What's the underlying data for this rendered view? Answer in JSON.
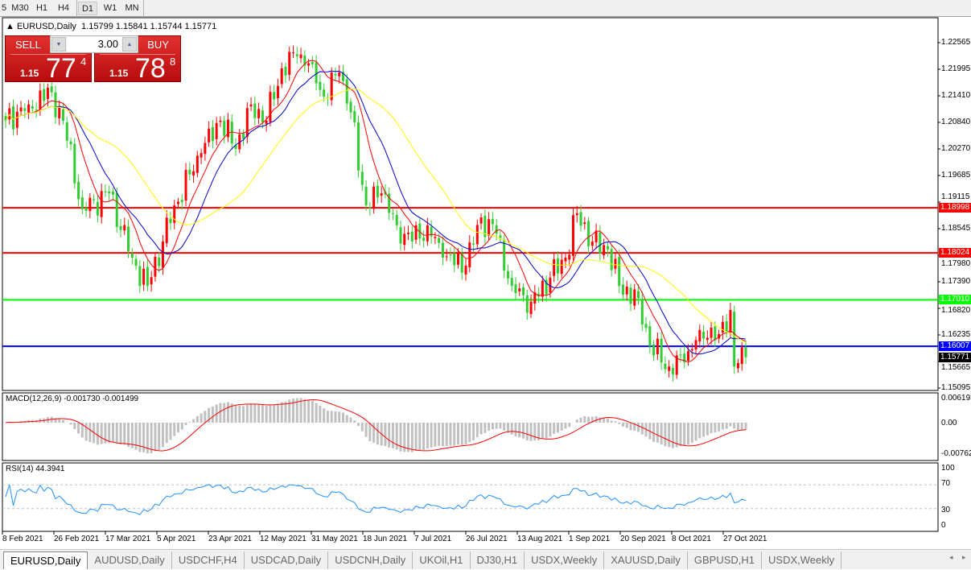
{
  "toolbar": {
    "timeframes": [
      {
        "label": "5"
      },
      {
        "label": "M30"
      },
      {
        "label": "H1"
      },
      {
        "label": "H4"
      },
      {
        "label": "D1",
        "active": true
      },
      {
        "label": "W1"
      },
      {
        "label": "MN"
      }
    ]
  },
  "chart": {
    "symbol": "EURUSD,Daily",
    "ohlc": "1.15799 1.15841 1.15744 1.15771",
    "trade": {
      "sell_label": "SELL",
      "buy_label": "BUY",
      "lot": "3.00",
      "sell_prefix": "1.15",
      "sell_big": "77",
      "sell_sup": "4",
      "buy_prefix": "1.15",
      "buy_big": "78",
      "buy_sup": "8"
    },
    "price_axis": [
      "1.22565",
      "1.21995",
      "1.21410",
      "1.20840",
      "1.20270",
      "1.19685",
      "1.19115",
      "1.18545",
      "1.17980",
      "1.17390",
      "1.16820",
      "1.16235",
      "1.15665",
      "1.15095"
    ],
    "levels": [
      {
        "price": "1.18998",
        "color": "#ff0000"
      },
      {
        "price": "1.18024",
        "color": "#ff0000"
      },
      {
        "price": "1.17010",
        "color": "#00ff00"
      },
      {
        "price": "1.16007",
        "color": "#0000ff"
      }
    ],
    "current_price": "1.15771",
    "colors": {
      "bull": "#ff0000",
      "bear": "#32cd32",
      "ma_fast": "#ff0000",
      "ma_mid": "#0000cd",
      "ma_slow": "#ffff00",
      "macd_hist": "#c0c0c0",
      "macd_signal": "#ff0000",
      "rsi": "#1e90ff"
    },
    "close_path": [
      {
        "d": "2021-02-08",
        "c": 1.2088
      },
      {
        "d": "2021-02-16",
        "c": 1.2123
      },
      {
        "d": "2021-02-24",
        "c": 1.2149
      },
      {
        "d": "2021-03-01",
        "c": 1.2088
      },
      {
        "d": "2021-03-08",
        "c": 1.1897
      },
      {
        "d": "2021-03-17",
        "c": 1.1931
      },
      {
        "d": "2021-03-25",
        "c": 1.1792
      },
      {
        "d": "2021-03-31",
        "c": 1.1731
      },
      {
        "d": "2021-04-06",
        "c": 1.1827
      },
      {
        "d": "2021-04-09",
        "c": 1.1905
      },
      {
        "d": "2021-04-20",
        "c": 1.2018
      },
      {
        "d": "2021-04-27",
        "c": 1.2088
      },
      {
        "d": "2021-05-03",
        "c": 1.2027
      },
      {
        "d": "2021-05-07",
        "c": 1.2123
      },
      {
        "d": "2021-05-13",
        "c": 1.2088
      },
      {
        "d": "2021-05-19",
        "c": 1.2201
      },
      {
        "d": "2021-05-25",
        "c": 1.2227
      },
      {
        "d": "2021-05-31",
        "c": 1.221
      },
      {
        "d": "2021-06-03",
        "c": 1.214
      },
      {
        "d": "2021-06-09",
        "c": 1.2192
      },
      {
        "d": "2021-06-14",
        "c": 1.2106
      },
      {
        "d": "2021-06-18",
        "c": 1.1905
      },
      {
        "d": "2021-06-24",
        "c": 1.1931
      },
      {
        "d": "2021-06-30",
        "c": 1.1862
      },
      {
        "d": "2021-07-06",
        "c": 1.1827
      },
      {
        "d": "2021-07-12",
        "c": 1.1862
      },
      {
        "d": "2021-07-16",
        "c": 1.1792
      },
      {
        "d": "2021-07-26",
        "c": 1.1775
      },
      {
        "d": "2021-07-30",
        "c": 1.1879
      },
      {
        "d": "2021-08-05",
        "c": 1.1844
      },
      {
        "d": "2021-08-11",
        "c": 1.1731
      },
      {
        "d": "2021-08-18",
        "c": 1.1697
      },
      {
        "d": "2021-08-25",
        "c": 1.1749
      },
      {
        "d": "2021-08-31",
        "c": 1.1792
      },
      {
        "d": "2021-09-03",
        "c": 1.1888
      },
      {
        "d": "2021-09-09",
        "c": 1.1827
      },
      {
        "d": "2021-09-15",
        "c": 1.181
      },
      {
        "d": "2021-09-20",
        "c": 1.1731
      },
      {
        "d": "2021-09-27",
        "c": 1.1705
      },
      {
        "d": "2021-09-30",
        "c": 1.1601
      },
      {
        "d": "2021-10-07",
        "c": 1.1557
      },
      {
        "d": "2021-10-13",
        "c": 1.1566
      },
      {
        "d": "2021-10-19",
        "c": 1.1636
      },
      {
        "d": "2021-10-26",
        "c": 1.1627
      },
      {
        "d": "2021-10-29",
        "c": 1.1679
      },
      {
        "d": "2021-11-01",
        "c": 1.1557
      },
      {
        "d": "2021-11-04",
        "c": 1.15771
      }
    ]
  },
  "macd": {
    "title": "MACD(12,26,9) -0.001730 -0.001499",
    "axis": [
      "0.006193",
      "0.00",
      "-0.007621"
    ]
  },
  "rsi": {
    "title": "RSI(14) 44.3941",
    "axis": [
      "100",
      "70",
      "30",
      "0"
    ]
  },
  "date_axis": [
    "8 Feb 2021",
    "26 Feb 2021",
    "17 Mar 2021",
    "5 Apr 2021",
    "23 Apr 2021",
    "12 May 2021",
    "31 May 2021",
    "18 Jun 2021",
    "7 Jul 2021",
    "26 Jul 2021",
    "13 Aug 2021",
    "1 Sep 2021",
    "20 Sep 2021",
    "8 Oct 2021",
    "27 Oct 2021"
  ],
  "tabs": [
    {
      "label": "EURUSD,Daily",
      "active": true
    },
    {
      "label": "AUDUSD,Daily"
    },
    {
      "label": "USDCHF,H4"
    },
    {
      "label": "USDCAD,Daily"
    },
    {
      "label": "USDCNH,Daily"
    },
    {
      "label": "UKOil,H1"
    },
    {
      "label": "DJ30,H1"
    },
    {
      "label": "USDX,Weekly"
    },
    {
      "label": "XAUUSD,Daily"
    },
    {
      "label": "GBPUSD,H1"
    },
    {
      "label": "USDX,Weekly"
    }
  ]
}
